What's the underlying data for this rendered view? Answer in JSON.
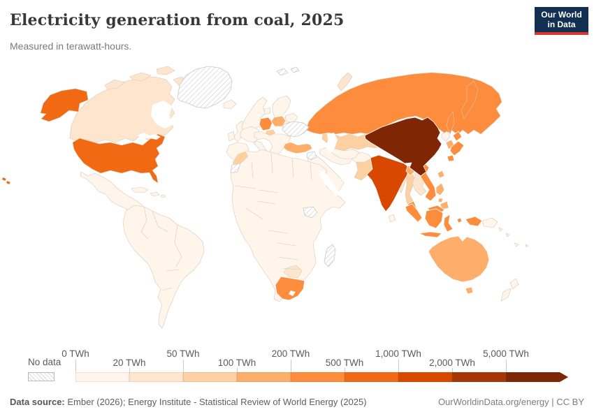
{
  "header": {
    "title": "Electricity generation from coal, 2025",
    "subtitle": "Measured in terawatt-hours.",
    "logo_line1": "Our World",
    "logo_line2": "in Data",
    "logo_bg": "#122e51",
    "logo_accent": "#d7362f"
  },
  "legend": {
    "no_data_label": "No data",
    "thresholds": [
      "0 TWh",
      "20 TWh",
      "50 TWh",
      "100 TWh",
      "200 TWh",
      "500 TWh",
      "1,000 TWh",
      "2,000 TWh",
      "5,000 TWh"
    ]
  },
  "footer": {
    "source_label": "Data source:",
    "source_text": " Ember (2026); Energy Institute - Statistical Review of World Energy (2025)",
    "link": "OurWorldinData.org/energy | CC BY"
  },
  "chart_data": {
    "type": "choropleth-map",
    "title": "Electricity generation from coal, 2025",
    "unit": "TWh",
    "legend_thresholds": [
      0,
      20,
      50,
      100,
      200,
      500,
      1000,
      2000,
      5000
    ],
    "palette": [
      "#fff5eb",
      "#fee6ce",
      "#fdd0a2",
      "#fdae6b",
      "#fd8d3c",
      "#f16913",
      "#d94801",
      "#a63603",
      "#7f2704"
    ],
    "ranges": [
      "0–20 TWh",
      "20–50 TWh",
      "50–100 TWh",
      "100–200 TWh",
      "200–500 TWh",
      "500–1,000 TWh",
      "1,000–2,000 TWh",
      "2,000–5,000 TWh",
      "5,000+ TWh"
    ],
    "no_data_color": "hatch",
    "countries": [
      {
        "id": "usa",
        "name": "United States",
        "bin": 5
      },
      {
        "id": "alaska",
        "name": "United States",
        "bin": 5
      },
      {
        "id": "hawaii",
        "name": "United States",
        "bin": 5
      },
      {
        "id": "canada",
        "name": "Canada",
        "bin": 1
      },
      {
        "id": "arctic-islands",
        "name": "Canada",
        "bin": 1
      },
      {
        "id": "greenland",
        "name": "Greenland",
        "bin": "no-data"
      },
      {
        "id": "iceland",
        "name": "Iceland",
        "bin": 0
      },
      {
        "id": "mexico-central-america",
        "name": "Mexico and Central America",
        "bin": 0
      },
      {
        "id": "caribbean",
        "name": "Caribbean",
        "bin": 0
      },
      {
        "id": "south-america",
        "name": "South America",
        "bin": 0
      },
      {
        "id": "uk-ireland",
        "name": "United Kingdom and Ireland",
        "bin": 0
      },
      {
        "id": "scandinavia",
        "name": "Norway and Sweden",
        "bin": 0
      },
      {
        "id": "denmark",
        "name": "Denmark",
        "bin": 0
      },
      {
        "id": "finland",
        "name": "Finland",
        "bin": 0
      },
      {
        "id": "baltics",
        "name": "Baltic states",
        "bin": 0
      },
      {
        "id": "belarus",
        "name": "Belarus",
        "bin": 0
      },
      {
        "id": "france",
        "name": "France",
        "bin": 0
      },
      {
        "id": "iberia",
        "name": "Spain and Portugal",
        "bin": 0
      },
      {
        "id": "italy",
        "name": "Italy",
        "bin": 0
      },
      {
        "id": "central-europe",
        "name": "Central and Southeast Europe",
        "bin": 0
      },
      {
        "id": "germany",
        "name": "Germany",
        "bin": 4
      },
      {
        "id": "poland",
        "name": "Poland",
        "bin": 3
      },
      {
        "id": "czechia",
        "name": "Czechia",
        "bin": 2
      },
      {
        "id": "ukraine",
        "name": "Ukraine",
        "bin": "no-data"
      },
      {
        "id": "turkey",
        "name": "Turkey",
        "bin": 3
      },
      {
        "id": "syria",
        "name": "Syria",
        "bin": "no-data"
      },
      {
        "id": "middle-east",
        "name": "Arabian Peninsula",
        "bin": 0
      },
      {
        "id": "iran",
        "name": "Iran",
        "bin": 0
      },
      {
        "id": "afghanistan",
        "name": "Afghanistan",
        "bin": 0
      },
      {
        "id": "central-asia",
        "name": "Central Asia",
        "bin": 0
      },
      {
        "id": "kazakhstan",
        "name": "Kazakhstan",
        "bin": 2
      },
      {
        "id": "russia",
        "name": "Russia",
        "bin": 4
      },
      {
        "id": "novaya-zemlya",
        "name": "Russia (Novaya Zemlya)",
        "bin": 1
      },
      {
        "id": "pakistan",
        "name": "Pakistan",
        "bin": 2
      },
      {
        "id": "india",
        "name": "India",
        "bin": 6
      },
      {
        "id": "sri-lanka",
        "name": "Sri Lanka",
        "bin": 0
      },
      {
        "id": "bangladesh",
        "name": "Bangladesh",
        "bin": 3
      },
      {
        "id": "myanmar",
        "name": "Myanmar",
        "bin": 1
      },
      {
        "id": "thailand",
        "name": "Thailand",
        "bin": 2
      },
      {
        "id": "laos-cambodia",
        "name": "Laos and Cambodia",
        "bin": 1
      },
      {
        "id": "vietnam",
        "name": "Vietnam",
        "bin": 4
      },
      {
        "id": "china",
        "name": "China",
        "bin": 8
      },
      {
        "id": "mongolia",
        "name": "Mongolia",
        "bin": 0
      },
      {
        "id": "north-korea",
        "name": "North Korea",
        "bin": 0
      },
      {
        "id": "south-korea",
        "name": "South Korea",
        "bin": 3
      },
      {
        "id": "japan",
        "name": "Japan",
        "bin": 4
      },
      {
        "id": "taiwan",
        "name": "Taiwan",
        "bin": 3
      },
      {
        "id": "philippines",
        "name": "Philippines",
        "bin": 3
      },
      {
        "id": "malaysia",
        "name": "Malaysia",
        "bin": 4
      },
      {
        "id": "indonesia",
        "name": "Indonesia",
        "bin": 4
      },
      {
        "id": "papua-new-guinea",
        "name": "Papua New Guinea",
        "bin": 0
      },
      {
        "id": "pacific-islands",
        "name": "Pacific islands",
        "bin": 0
      },
      {
        "id": "australia",
        "name": "Australia",
        "bin": 3
      },
      {
        "id": "new-zealand",
        "name": "New Zealand",
        "bin": 0
      },
      {
        "id": "africa",
        "name": "Africa",
        "bin": 0
      },
      {
        "id": "morocco",
        "name": "Morocco",
        "bin": 2
      },
      {
        "id": "western-sahara",
        "name": "Western Sahara",
        "bin": "no-data"
      },
      {
        "id": "south-sudan",
        "name": "South Sudan",
        "bin": "no-data"
      },
      {
        "id": "botswana-zimbabwe",
        "name": "Botswana and Zimbabwe",
        "bin": 1
      },
      {
        "id": "south-africa",
        "name": "South Africa",
        "bin": 4
      },
      {
        "id": "madagascar",
        "name": "Madagascar",
        "bin": "no-data"
      },
      {
        "id": "svalbard",
        "name": "Svalbard",
        "bin": "no-data"
      }
    ]
  }
}
